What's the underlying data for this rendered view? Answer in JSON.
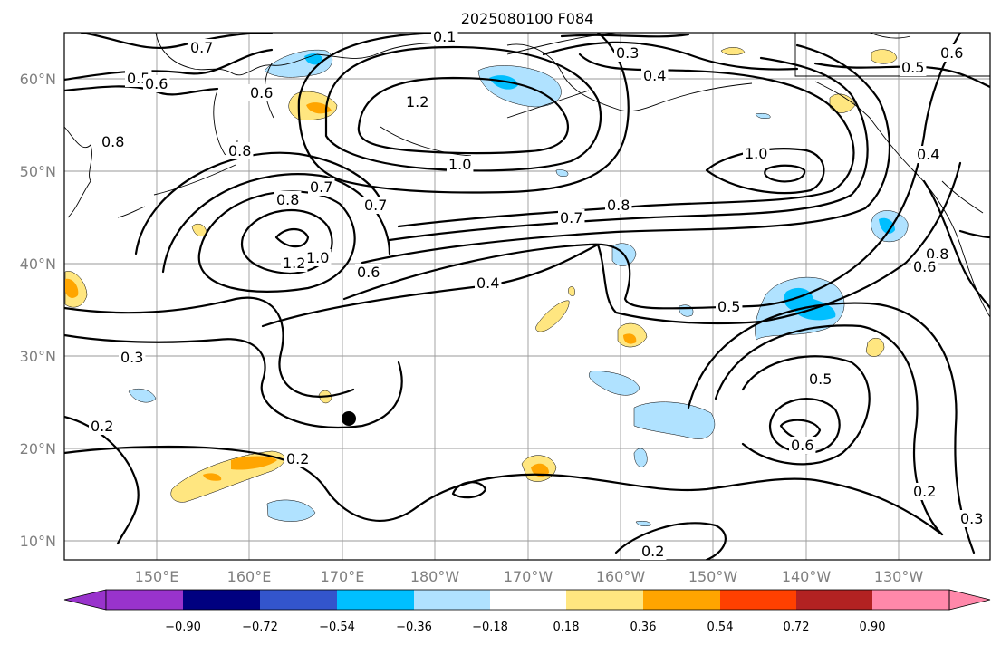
{
  "title": "2025080100 F084",
  "lat_labels": [
    "60°N",
    "50°N",
    "40°N",
    "30°N",
    "20°N",
    "10°N"
  ],
  "lon_labels": [
    "150°E",
    "160°E",
    "170°E",
    "180°W",
    "170°W",
    "160°W",
    "150°W",
    "140°W",
    "130°W"
  ],
  "colorbar": {
    "ticks": [
      "−0.90",
      "−0.72",
      "−0.54",
      "−0.36",
      "−0.18",
      "0.18",
      "0.36",
      "0.54",
      "0.72",
      "0.90"
    ],
    "colors": [
      "#9933cc",
      "#000080",
      "#3355cc",
      "#00bfff",
      "#b0e2ff",
      "#ffffff",
      "#ffe680",
      "#ffa500",
      "#ff4000",
      "#b22222",
      "#ff88aa"
    ]
  },
  "contour_labels": [
    {
      "text": "0.7"
    },
    {
      "text": "0.5"
    },
    {
      "text": "0.6"
    },
    {
      "text": "0.6"
    },
    {
      "text": "0.8"
    },
    {
      "text": "0.8"
    },
    {
      "text": "1.2"
    },
    {
      "text": "1.0"
    },
    {
      "text": "0.3"
    },
    {
      "text": "0.4"
    },
    {
      "text": "0.5"
    },
    {
      "text": "0.6"
    },
    {
      "text": "1.0"
    },
    {
      "text": "0.7"
    },
    {
      "text": "0.8"
    },
    {
      "text": "0.8"
    },
    {
      "text": "0.7"
    },
    {
      "text": "0.7"
    },
    {
      "text": "1.2"
    },
    {
      "text": "1.0"
    },
    {
      "text": "0.6"
    },
    {
      "text": "0.4"
    },
    {
      "text": "0.5"
    },
    {
      "text": "0.3"
    },
    {
      "text": "0.5"
    },
    {
      "text": "0.6"
    },
    {
      "text": "0.2"
    },
    {
      "text": "0.2"
    },
    {
      "text": "0.2"
    },
    {
      "text": "0.2"
    },
    {
      "text": "0.3"
    },
    {
      "text": "0.8"
    },
    {
      "text": "0.6"
    },
    {
      "text": "0.4"
    },
    {
      "text": "0.1"
    }
  ],
  "marker": {
    "name": "black-dot-marker",
    "color": "#000000"
  }
}
